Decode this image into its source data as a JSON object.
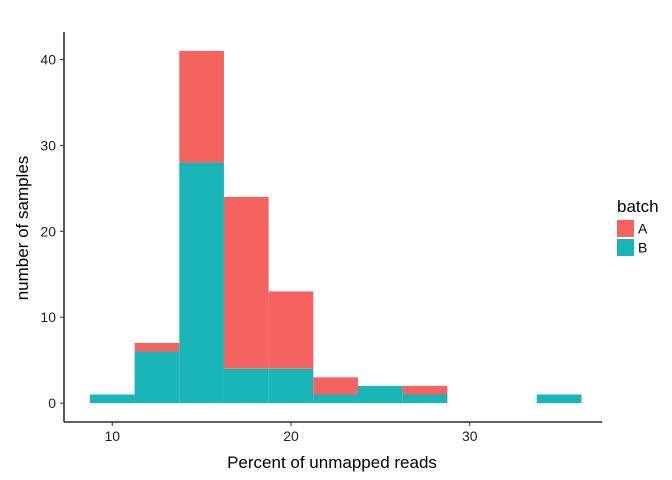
{
  "chart_data": {
    "type": "bar",
    "subtype": "stacked-histogram",
    "title": "",
    "xlabel": "Percent of unmapped reads",
    "ylabel": "number of samples",
    "xlim": [
      7.3,
      37.4
    ],
    "ylim": [
      -2.2,
      43.2
    ],
    "x_ticks": [
      10,
      20,
      30
    ],
    "y_ticks": [
      0,
      10,
      20,
      30,
      40
    ],
    "grid": false,
    "legend": {
      "title": "batch",
      "position": "right"
    },
    "bins": [
      {
        "x0": 8.75,
        "x1": 11.25
      },
      {
        "x0": 11.25,
        "x1": 13.75
      },
      {
        "x0": 13.75,
        "x1": 16.25
      },
      {
        "x0": 16.25,
        "x1": 18.75
      },
      {
        "x0": 18.75,
        "x1": 21.25
      },
      {
        "x0": 21.25,
        "x1": 23.75
      },
      {
        "x0": 23.75,
        "x1": 26.25
      },
      {
        "x0": 26.25,
        "x1": 28.75
      },
      {
        "x0": 28.75,
        "x1": 31.25
      },
      {
        "x0": 31.25,
        "x1": 33.75
      },
      {
        "x0": 33.75,
        "x1": 36.25
      }
    ],
    "series": [
      {
        "name": "B",
        "color": "#19B5B9",
        "values": [
          1,
          6,
          28,
          4,
          4,
          1,
          2,
          1,
          0,
          0,
          1
        ]
      },
      {
        "name": "A",
        "color": "#F46360",
        "values": [
          0,
          1,
          13,
          20,
          9,
          2,
          0,
          1,
          0,
          0,
          0
        ]
      }
    ],
    "legend_order": [
      "A",
      "B"
    ]
  }
}
